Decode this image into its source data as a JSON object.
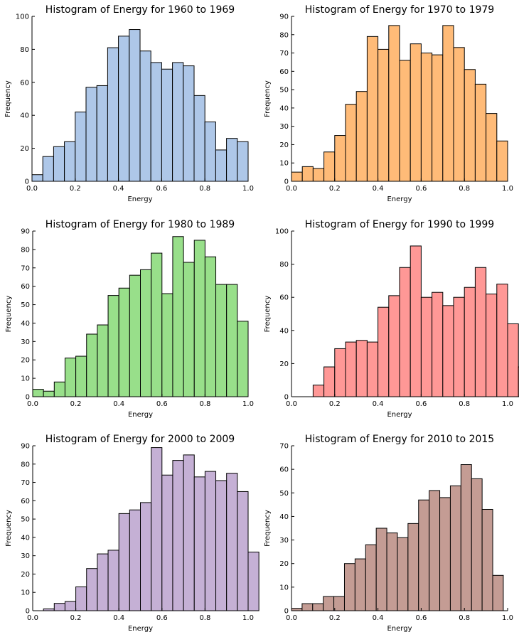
{
  "chart_data": [
    {
      "type": "bar",
      "title": "Histogram of Energy for 1960 to 1969",
      "xlabel": "Energy",
      "ylabel": "Frequency",
      "xlim": [
        0,
        1
      ],
      "ylim": [
        0,
        100
      ],
      "xticks": [
        "0.0",
        "0.2",
        "0.4",
        "0.6",
        "0.8",
        "1.0"
      ],
      "yticks": [
        0,
        20,
        40,
        60,
        80,
        100
      ],
      "bin_width": 0.05,
      "bin_start": 0.0,
      "values": [
        4,
        15,
        21,
        24,
        42,
        57,
        58,
        81,
        88,
        92,
        79,
        72,
        68,
        72,
        70,
        52,
        36,
        19,
        26,
        24
      ],
      "color": "#aec7e8",
      "grid": false
    },
    {
      "type": "bar",
      "title": "Histogram of Energy for 1970 to 1979",
      "xlabel": "Energy",
      "ylabel": "Frequency",
      "xlim": [
        0,
        1
      ],
      "ylim": [
        0,
        90
      ],
      "xticks": [
        "0.0",
        "0.2",
        "0.4",
        "0.6",
        "0.8",
        "1.0"
      ],
      "yticks": [
        0,
        10,
        20,
        30,
        40,
        50,
        60,
        70,
        80,
        90
      ],
      "bin_width": 0.05,
      "bin_start": 0.0,
      "values": [
        5,
        8,
        7,
        16,
        25,
        42,
        49,
        79,
        72,
        85,
        66,
        75,
        70,
        69,
        85,
        73,
        61,
        53,
        37,
        22
      ],
      "color": "#ffbb78",
      "grid": false
    },
    {
      "type": "bar",
      "title": "Histogram of Energy for 1980 to 1989",
      "xlabel": "Energy",
      "ylabel": "Frequency",
      "xlim": [
        0,
        1
      ],
      "ylim": [
        0,
        90
      ],
      "xticks": [
        "0.0",
        "0.2",
        "0.4",
        "0.6",
        "0.8",
        "1.0"
      ],
      "yticks": [
        0,
        10,
        20,
        30,
        40,
        50,
        60,
        70,
        80,
        90
      ],
      "bin_width": 0.05,
      "bin_start": 0.0,
      "values": [
        4,
        3,
        8,
        21,
        22,
        34,
        39,
        55,
        59,
        66,
        69,
        78,
        56,
        87,
        73,
        85,
        76,
        61,
        61,
        41
      ],
      "color": "#98df8a",
      "grid": false
    },
    {
      "type": "bar",
      "title": "Histogram of Energy for 1990 to 1999",
      "xlabel": "Energy",
      "ylabel": "Frequency",
      "xlim": [
        0,
        1
      ],
      "ylim": [
        0,
        100
      ],
      "xticks": [
        "0.0",
        "0.2",
        "0.4",
        "0.6",
        "0.8",
        "1.0"
      ],
      "yticks": [
        0,
        20,
        40,
        60,
        80,
        100
      ],
      "bin_width": 0.05,
      "bin_start": 0.1,
      "values": [
        7,
        18,
        29,
        33,
        34,
        33,
        54,
        61,
        78,
        91,
        60,
        63,
        55,
        60,
        66,
        78,
        62,
        68,
        44,
        18
      ],
      "color": "#ff9896",
      "grid": false
    },
    {
      "type": "bar",
      "title": "Histogram of Energy for 2000 to 2009",
      "xlabel": "Energy",
      "ylabel": "Frequency",
      "xlim": [
        0,
        1
      ],
      "ylim": [
        0,
        90
      ],
      "xticks": [
        "0.0",
        "0.2",
        "0.4",
        "0.6",
        "0.8",
        "1.0"
      ],
      "yticks": [
        0,
        10,
        20,
        30,
        40,
        50,
        60,
        70,
        80,
        90
      ],
      "bin_width": 0.05,
      "bin_start": 0.05,
      "values": [
        1,
        4,
        5,
        13,
        23,
        31,
        33,
        53,
        55,
        59,
        89,
        74,
        82,
        85,
        73,
        76,
        71,
        75,
        65,
        32
      ],
      "color": "#c5b0d5",
      "grid": false
    },
    {
      "type": "bar",
      "title": "Histogram of Energy for 2010 to 2015",
      "xlabel": "Energy",
      "ylabel": "Frequency",
      "xlim": [
        0,
        1
      ],
      "ylim": [
        0,
        70
      ],
      "xticks": [
        "0.0",
        "0.2",
        "0.4",
        "0.6",
        "0.8",
        "1.0"
      ],
      "yticks": [
        0,
        10,
        20,
        30,
        40,
        50,
        60,
        70
      ],
      "bin_width": 0.049,
      "bin_start": 0.0,
      "values": [
        1,
        3,
        3,
        6,
        6,
        20,
        22,
        28,
        35,
        33,
        31,
        37,
        47,
        51,
        48,
        53,
        62,
        56,
        43,
        15
      ],
      "color": "#c49c94",
      "grid": false
    }
  ]
}
